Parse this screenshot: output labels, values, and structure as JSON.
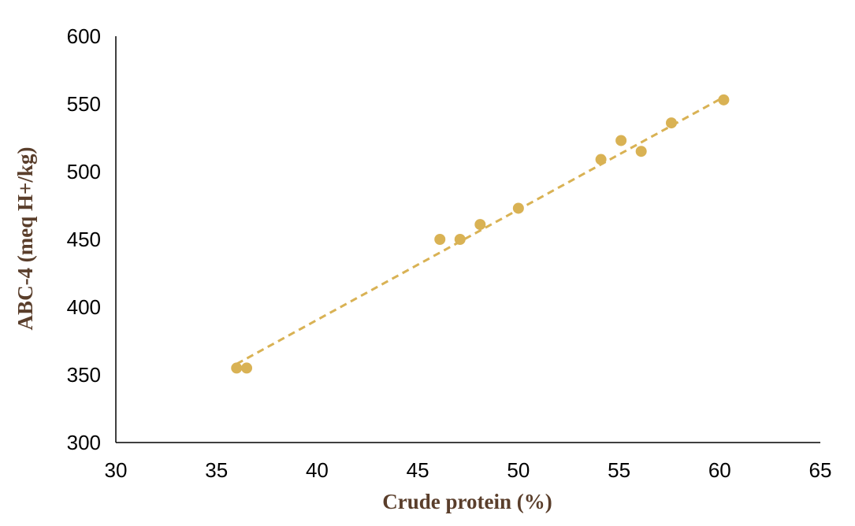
{
  "chart_data": {
    "type": "scatter",
    "title": "",
    "xlabel": "Crude protein (%)",
    "ylabel": "ABC-4 (meq H+/kg)",
    "xlim": [
      30,
      65
    ],
    "ylim": [
      300,
      600
    ],
    "xticks": [
      30,
      35,
      40,
      45,
      50,
      55,
      60,
      65
    ],
    "yticks": [
      300,
      350,
      400,
      450,
      500,
      550,
      600
    ],
    "grid": false,
    "series": [
      {
        "points": [
          {
            "x": 36.0,
            "y": 355
          },
          {
            "x": 36.5,
            "y": 355
          },
          {
            "x": 46.1,
            "y": 450
          },
          {
            "x": 47.1,
            "y": 450
          },
          {
            "x": 48.1,
            "y": 461
          },
          {
            "x": 50.0,
            "y": 473
          },
          {
            "x": 54.1,
            "y": 509
          },
          {
            "x": 55.1,
            "y": 523
          },
          {
            "x": 56.1,
            "y": 515
          },
          {
            "x": 57.6,
            "y": 536
          },
          {
            "x": 60.2,
            "y": 553
          }
        ]
      }
    ],
    "trendline": {
      "type": "linear",
      "style": "dashed",
      "x_start": 36.0,
      "x_end": 60.2,
      "y_start": 358,
      "y_end": 555
    }
  },
  "colors": {
    "marker": "#D9B254",
    "trendline": "#D9B254",
    "axis_title": "#5A3E2B",
    "axis": "#000000"
  }
}
